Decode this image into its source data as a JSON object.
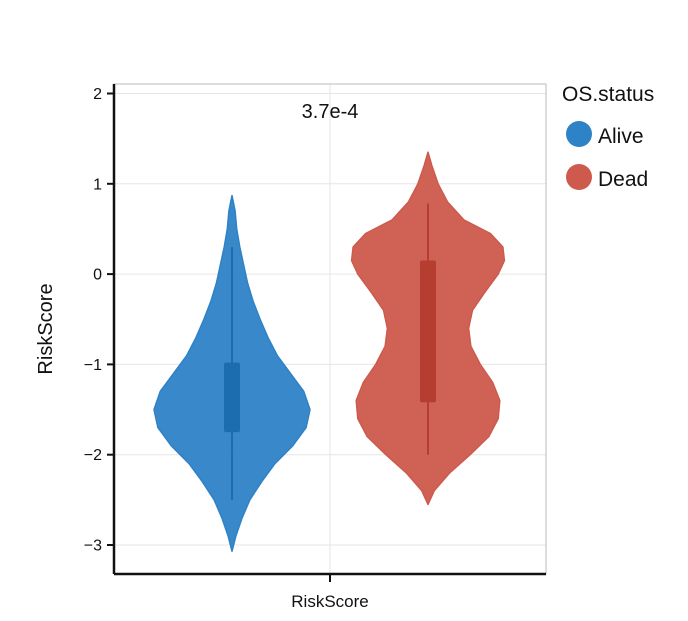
{
  "chart_data": {
    "type": "violin",
    "ylabel": "RiskScore",
    "xlabel": "RiskScore",
    "ylim": [
      -3.3,
      2.1
    ],
    "yticks": [
      "2",
      "1",
      "0",
      "-1",
      "-2",
      "-3"
    ],
    "ytick_values": [
      2,
      1,
      0,
      -1,
      -2,
      -3
    ],
    "grid": true,
    "annotation": "3.7e-4",
    "legend": {
      "title": "OS.status",
      "position": "right"
    },
    "series": [
      {
        "name": "Alive",
        "color": "#2e82c6",
        "box_color": "#1c6cb0",
        "whisker": [
          -2.5,
          0.3
        ],
        "box": [
          -1.75,
          -0.98
        ],
        "median": -1.35,
        "density": [
          [
            -3.07,
            0.0
          ],
          [
            -2.9,
            0.05
          ],
          [
            -2.7,
            0.13
          ],
          [
            -2.5,
            0.23
          ],
          [
            -2.3,
            0.38
          ],
          [
            -2.1,
            0.55
          ],
          [
            -1.9,
            0.78
          ],
          [
            -1.7,
            0.95
          ],
          [
            -1.5,
            1.0
          ],
          [
            -1.3,
            0.92
          ],
          [
            -1.1,
            0.75
          ],
          [
            -0.9,
            0.58
          ],
          [
            -0.7,
            0.46
          ],
          [
            -0.5,
            0.36
          ],
          [
            -0.3,
            0.27
          ],
          [
            -0.1,
            0.2
          ],
          [
            0.1,
            0.15
          ],
          [
            0.3,
            0.1
          ],
          [
            0.5,
            0.06
          ],
          [
            0.7,
            0.04
          ],
          [
            0.87,
            0.0
          ]
        ]
      },
      {
        "name": "Dead",
        "color": "#cd5a4c",
        "box_color": "#b53e30",
        "whisker": [
          -2.0,
          0.78
        ],
        "box": [
          -1.42,
          0.15
        ],
        "median": -0.6,
        "density": [
          [
            -2.55,
            0.0
          ],
          [
            -2.4,
            0.08
          ],
          [
            -2.2,
            0.28
          ],
          [
            -2.0,
            0.54
          ],
          [
            -1.8,
            0.78
          ],
          [
            -1.6,
            0.9
          ],
          [
            -1.4,
            0.92
          ],
          [
            -1.2,
            0.83
          ],
          [
            -1.0,
            0.67
          ],
          [
            -0.8,
            0.55
          ],
          [
            -0.6,
            0.52
          ],
          [
            -0.4,
            0.57
          ],
          [
            -0.2,
            0.73
          ],
          [
            0.0,
            0.9
          ],
          [
            0.15,
            0.98
          ],
          [
            0.3,
            0.96
          ],
          [
            0.45,
            0.8
          ],
          [
            0.6,
            0.46
          ],
          [
            0.8,
            0.25
          ],
          [
            1.0,
            0.13
          ],
          [
            1.2,
            0.05
          ],
          [
            1.35,
            0.0
          ]
        ]
      }
    ]
  }
}
